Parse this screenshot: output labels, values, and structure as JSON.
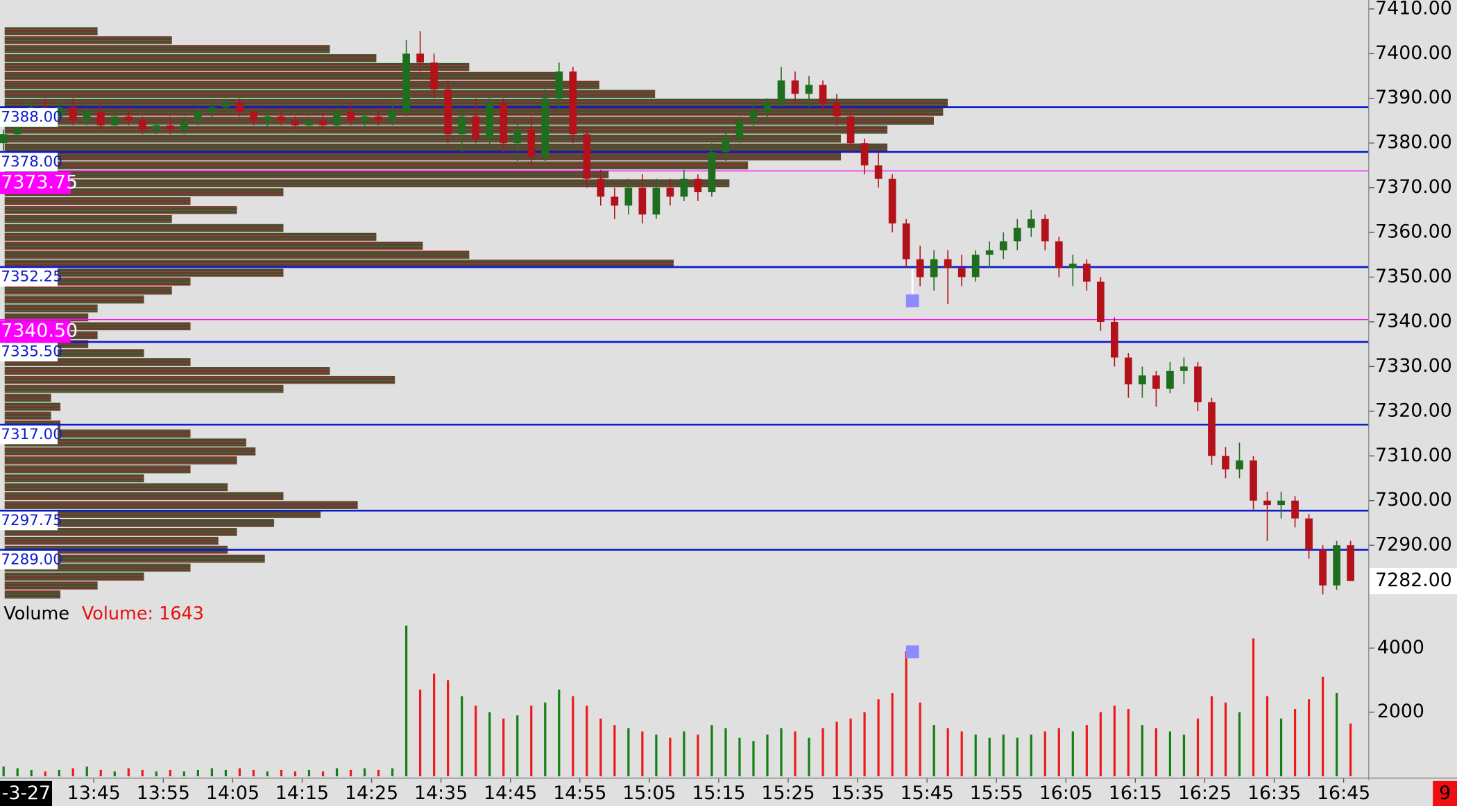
{
  "chart_data": {
    "type": "candlestick",
    "x": [
      "13:32",
      "13:34",
      "13:36",
      "13:38",
      "13:40",
      "13:42",
      "13:44",
      "13:46",
      "13:48",
      "13:50",
      "13:52",
      "13:54",
      "13:56",
      "13:58",
      "14:00",
      "14:02",
      "14:04",
      "14:06",
      "14:08",
      "14:10",
      "14:12",
      "14:14",
      "14:16",
      "14:18",
      "14:20",
      "14:22",
      "14:24",
      "14:26",
      "14:28",
      "14:30",
      "14:32",
      "14:34",
      "14:36",
      "14:38",
      "14:40",
      "14:42",
      "14:44",
      "14:46",
      "14:48",
      "14:50",
      "14:52",
      "14:54",
      "14:56",
      "14:58",
      "15:00",
      "15:02",
      "15:04",
      "15:06",
      "15:08",
      "15:10",
      "15:12",
      "15:14",
      "15:16",
      "15:18",
      "15:20",
      "15:22",
      "15:24",
      "15:26",
      "15:28",
      "15:30",
      "15:32",
      "15:34",
      "15:36",
      "15:38",
      "15:40",
      "15:42",
      "15:44",
      "15:46",
      "15:48",
      "15:50",
      "15:52",
      "15:54",
      "15:56",
      "15:58",
      "16:00",
      "16:02",
      "16:04",
      "16:06",
      "16:08",
      "16:10",
      "16:12",
      "16:14",
      "16:16",
      "16:18",
      "16:20",
      "16:22",
      "16:24",
      "16:26",
      "16:28",
      "16:30",
      "16:32",
      "16:34",
      "16:36",
      "16:38",
      "16:40",
      "16:42",
      "16:44",
      "16:46"
    ],
    "open": [
      7380,
      7382,
      7385,
      7388,
      7386,
      7388,
      7385,
      7387,
      7384,
      7386,
      7385,
      7383,
      7384,
      7383,
      7385,
      7387,
      7388,
      7389,
      7387,
      7385,
      7386,
      7385,
      7384,
      7385,
      7384,
      7387,
      7385,
      7386,
      7385,
      7387,
      7400,
      7398,
      7392,
      7382,
      7386,
      7381,
      7389,
      7380,
      7383,
      7377,
      7390,
      7396,
      7382,
      7372,
      7368,
      7366,
      7370,
      7364,
      7370,
      7368,
      7372,
      7369,
      7378,
      7381,
      7385,
      7387,
      7389,
      7394,
      7391,
      7393,
      7389,
      7386,
      7380,
      7375,
      7372,
      7362,
      7354,
      7350,
      7354,
      7352,
      7350,
      7355,
      7356,
      7358,
      7361,
      7363,
      7358,
      7352,
      7353,
      7349,
      7340,
      7332,
      7326,
      7328,
      7325,
      7329,
      7330,
      7322,
      7310,
      7307,
      7309,
      7300,
      7299,
      7300,
      7296,
      7289,
      7281,
      7290
    ],
    "high": [
      7383,
      7386,
      7389,
      7390,
      7389,
      7390,
      7388,
      7389,
      7387,
      7388,
      7386,
      7385,
      7386,
      7386,
      7388,
      7389,
      7390,
      7390,
      7388,
      7387,
      7388,
      7386,
      7386,
      7387,
      7388,
      7389,
      7387,
      7388,
      7389,
      7403,
      7405,
      7400,
      7394,
      7388,
      7390,
      7390,
      7390,
      7385,
      7386,
      7392,
      7398,
      7397,
      7383,
      7374,
      7370,
      7372,
      7373,
      7372,
      7372,
      7374,
      7373,
      7380,
      7383,
      7386,
      7389,
      7390,
      7397,
      7396,
      7395,
      7394,
      7391,
      7388,
      7381,
      7378,
      7373,
      7363,
      7357,
      7356,
      7356,
      7355,
      7356,
      7358,
      7360,
      7363,
      7365,
      7364,
      7359,
      7355,
      7354,
      7350,
      7341,
      7333,
      7330,
      7329,
      7331,
      7332,
      7331,
      7323,
      7312,
      7313,
      7310,
      7302,
      7302,
      7301,
      7297,
      7290,
      7291,
      7291
    ],
    "low": [
      7378,
      7381,
      7384,
      7385,
      7385,
      7384,
      7384,
      7383,
      7383,
      7384,
      7382,
      7382,
      7382,
      7382,
      7384,
      7385,
      7387,
      7386,
      7384,
      7383,
      7384,
      7383,
      7383,
      7383,
      7383,
      7384,
      7383,
      7384,
      7384,
      7386,
      7396,
      7390,
      7380,
      7378,
      7380,
      7379,
      7378,
      7376,
      7375,
      7376,
      7388,
      7380,
      7370,
      7366,
      7363,
      7364,
      7362,
      7363,
      7366,
      7367,
      7367,
      7368,
      7376,
      7380,
      7383,
      7385,
      7388,
      7389,
      7388,
      7387,
      7384,
      7378,
      7373,
      7370,
      7360,
      7352,
      7348,
      7347,
      7344,
      7348,
      7349,
      7352,
      7354,
      7356,
      7359,
      7356,
      7350,
      7348,
      7347,
      7338,
      7330,
      7323,
      7323,
      7321,
      7324,
      7326,
      7320,
      7308,
      7305,
      7305,
      7298,
      7291,
      7296,
      7294,
      7287,
      7279,
      7280,
      7282
    ],
    "close": [
      7382,
      7385,
      7388,
      7386,
      7388,
      7385,
      7387,
      7384,
      7386,
      7385,
      7383,
      7384,
      7383,
      7385,
      7387,
      7388,
      7389,
      7387,
      7385,
      7386,
      7385,
      7384,
      7385,
      7384,
      7387,
      7385,
      7386,
      7385,
      7387,
      7400,
      7398,
      7392,
      7382,
      7386,
      7381,
      7389,
      7380,
      7383,
      7377,
      7390,
      7396,
      7382,
      7372,
      7368,
      7366,
      7370,
      7364,
      7370,
      7368,
      7372,
      7369,
      7378,
      7381,
      7385,
      7387,
      7389,
      7394,
      7391,
      7393,
      7389,
      7386,
      7380,
      7375,
      7372,
      7362,
      7354,
      7350,
      7354,
      7352,
      7350,
      7355,
      7356,
      7358,
      7361,
      7363,
      7358,
      7352,
      7353,
      7349,
      7340,
      7332,
      7326,
      7328,
      7325,
      7329,
      7330,
      7322,
      7310,
      7307,
      7309,
      7300,
      7299,
      7300,
      7296,
      7289,
      7281,
      7290,
      7282
    ],
    "volume": [
      300,
      250,
      200,
      150,
      200,
      250,
      300,
      200,
      150,
      250,
      200,
      150,
      200,
      150,
      200,
      250,
      200,
      250,
      200,
      150,
      200,
      150,
      200,
      150,
      250,
      200,
      250,
      200,
      250,
      4700,
      2700,
      3200,
      3000,
      2500,
      2200,
      2000,
      1800,
      1900,
      2200,
      2300,
      2700,
      2500,
      2200,
      1800,
      1600,
      1500,
      1400,
      1300,
      1200,
      1400,
      1300,
      1600,
      1500,
      1200,
      1100,
      1300,
      1500,
      1400,
      1200,
      1500,
      1700,
      1800,
      2000,
      2400,
      2600,
      3900,
      2300,
      1600,
      1500,
      1400,
      1300,
      1200,
      1300,
      1200,
      1300,
      1400,
      1500,
      1400,
      1600,
      2000,
      2200,
      2100,
      1600,
      1500,
      1400,
      1300,
      1800,
      2500,
      2300,
      2000,
      4300,
      2500,
      1800,
      2100,
      2400,
      3100,
      2600,
      1643
    ],
    "up_color": "#1f6e1f",
    "down_color": "#b3121a",
    "ylim": [
      7278,
      7412
    ],
    "yticks": [
      {
        "value": 7290,
        "label": "7290.00"
      },
      {
        "value": 7300,
        "label": "7300.00"
      },
      {
        "value": 7310,
        "label": "7310.00"
      },
      {
        "value": 7320,
        "label": "7320.00"
      },
      {
        "value": 7330,
        "label": "7330.00"
      },
      {
        "value": 7340,
        "label": "7340.00"
      },
      {
        "value": 7350,
        "label": "7350.00"
      },
      {
        "value": 7360,
        "label": "7360.00"
      },
      {
        "value": 7370,
        "label": "7370.00"
      },
      {
        "value": 7380,
        "label": "7380.00"
      },
      {
        "value": 7390,
        "label": "7390.00"
      },
      {
        "value": 7400,
        "label": "7400.00"
      },
      {
        "value": 7410,
        "label": "7410.00"
      }
    ],
    "last_price": {
      "value": 7282,
      "label": "7282.00"
    },
    "levels": [
      {
        "value": 7388,
        "label": "7388.00",
        "color": "#0a1acc"
      },
      {
        "value": 7378,
        "label": "7378.00",
        "color": "#0a1acc"
      },
      {
        "value": 7373.75,
        "label": "7373.75",
        "color": "#ff00ff"
      },
      {
        "value": 7352.25,
        "label": "7352.25",
        "color": "#0a1acc"
      },
      {
        "value": 7340.5,
        "label": "7340.50",
        "color": "#ff00ff"
      },
      {
        "value": 7335.5,
        "label": "7335.50",
        "color": "#0a1acc"
      },
      {
        "value": 7317,
        "label": "7317.00",
        "color": "#0a1acc"
      },
      {
        "value": 7297.75,
        "label": "7297.75",
        "color": "#0a1acc"
      },
      {
        "value": 7289,
        "label": "7289.00",
        "color": "#0a1acc"
      }
    ],
    "profile": {
      "prices": [
        7278,
        7280,
        7282,
        7284,
        7286,
        7288,
        7290,
        7292,
        7294,
        7296,
        7298,
        7300,
        7302,
        7304,
        7306,
        7308,
        7310,
        7312,
        7314,
        7316,
        7318,
        7320,
        7322,
        7324,
        7326,
        7328,
        7330,
        7332,
        7334,
        7336,
        7338,
        7340,
        7342,
        7344,
        7346,
        7348,
        7350,
        7352,
        7354,
        7356,
        7358,
        7360,
        7362,
        7364,
        7366,
        7368,
        7370,
        7372,
        7374,
        7376,
        7378,
        7380,
        7382,
        7384,
        7386,
        7388,
        7390,
        7392,
        7394,
        7396,
        7398,
        7400,
        7402,
        7404
      ],
      "values": [
        60,
        100,
        150,
        200,
        280,
        240,
        230,
        250,
        290,
        340,
        380,
        300,
        240,
        150,
        200,
        250,
        270,
        260,
        200,
        60,
        50,
        60,
        50,
        300,
        420,
        350,
        200,
        150,
        90,
        100,
        200,
        90,
        100,
        150,
        180,
        200,
        300,
        720,
        500,
        450,
        400,
        300,
        180,
        250,
        200,
        300,
        780,
        650,
        800,
        900,
        950,
        900,
        950,
        1000,
        1010,
        1015,
        700,
        640,
        600,
        500,
        400,
        350,
        180,
        100
      ]
    },
    "volume_title": "Volume",
    "volume_label": "Volume: 1643",
    "volume_ylim": [
      0,
      4750
    ],
    "volume_yticks": [
      2000,
      4000
    ],
    "xticks": [
      "13:45",
      "13:55",
      "14:05",
      "14:15",
      "14:25",
      "14:35",
      "14:45",
      "14:55",
      "15:05",
      "15:15",
      "15:25",
      "15:35",
      "15:45",
      "15:55",
      "16:05",
      "16:15",
      "16:25",
      "16:35",
      "16:45"
    ],
    "date_label": "-3-27",
    "badge": "9"
  }
}
